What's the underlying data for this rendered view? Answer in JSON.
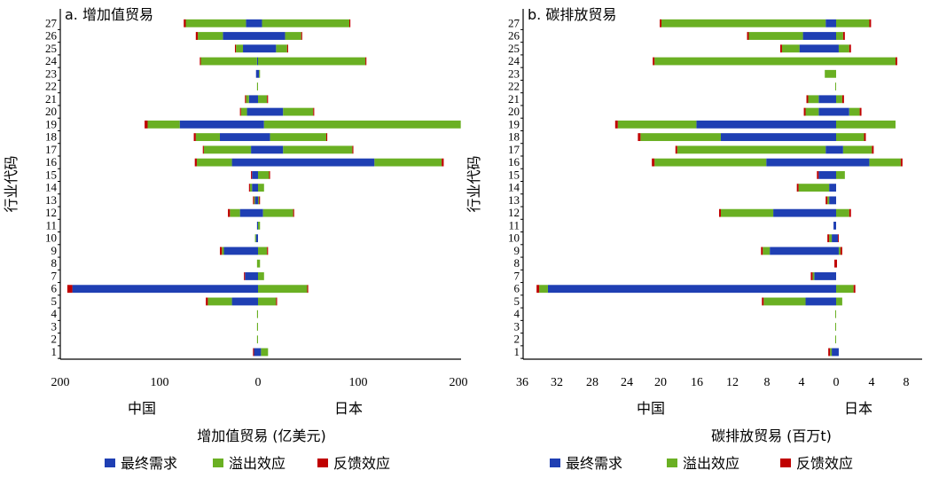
{
  "chart_data": [
    {
      "type": "bar",
      "orientation": "horizontal-diverging",
      "title": "a. 增加值贸易",
      "ylabel": "行业代码",
      "xlabel": "增加值贸易 (亿美元)",
      "left_label": "中国",
      "right_label": "日本",
      "xlim": [
        -200,
        200
      ],
      "xticks": [
        "200",
        "100",
        "0",
        "100",
        "200"
      ],
      "categories": [
        "1",
        "2",
        "3",
        "4",
        "5",
        "6",
        "7",
        "8",
        "9",
        "10",
        "11",
        "12",
        "13",
        "14",
        "15",
        "16",
        "17",
        "18",
        "19",
        "20",
        "21",
        "22",
        "23",
        "24",
        "25",
        "26",
        "27"
      ],
      "series": [
        {
          "name": "最终需求",
          "color": "#1f3fb3",
          "china": [
            -4,
            0,
            0,
            0,
            -26,
            -185,
            -13,
            0,
            -34,
            -2,
            -1,
            -18,
            -3,
            -6,
            -6,
            -26,
            -7,
            -38,
            -78,
            -11,
            -9,
            0,
            -2,
            -1,
            -15,
            -35,
            -12
          ],
          "japan": [
            3,
            0,
            0,
            0,
            0,
            0,
            0,
            0,
            0,
            0,
            0,
            5,
            0,
            0,
            0,
            116,
            25,
            12,
            6,
            25,
            0,
            0,
            1,
            0,
            18,
            27,
            4
          ]
        },
        {
          "name": "溢出效应",
          "color": "#6ab023",
          "china": [
            0,
            -1,
            -1,
            -1,
            -24,
            0,
            0,
            -1,
            -2,
            -1,
            0,
            -10,
            -1,
            -2,
            0,
            -35,
            -47,
            -24,
            -32,
            -6,
            -3,
            -1,
            0,
            -56,
            -7,
            -25,
            -60
          ],
          "japan": [
            7,
            0,
            0,
            0,
            18,
            49,
            6,
            2,
            9,
            0,
            2,
            30,
            1,
            6,
            11,
            67,
            69,
            56,
            196,
            30,
            9,
            0,
            1,
            107,
            11,
            16,
            87
          ]
        },
        {
          "name": "反馈效应",
          "color": "#c00000",
          "china": [
            -1,
            0,
            0,
            0,
            -2,
            -5,
            -1,
            0,
            -2,
            0,
            0,
            -2,
            -1,
            -1,
            -1,
            -2,
            -1,
            -2,
            -3,
            -1,
            -1,
            0,
            0,
            -1,
            -1,
            -2,
            -2
          ],
          "japan": [
            0,
            0,
            0,
            0,
            1,
            1,
            0,
            0,
            1,
            0,
            0,
            1,
            1,
            0,
            1,
            2,
            1,
            1,
            0,
            1,
            1,
            0,
            0,
            1,
            1,
            1,
            1
          ]
        }
      ]
    },
    {
      "type": "bar",
      "orientation": "horizontal-diverging",
      "title": "b. 碳排放贸易",
      "ylabel": "行业代码",
      "xlabel": "碳排放贸易 (百万t)",
      "left_label": "中国",
      "right_label": "日本",
      "xlim": [
        -36,
        10
      ],
      "xticks": [
        "36",
        "32",
        "28",
        "24",
        "20",
        "16",
        "12",
        "8",
        "4",
        "0",
        "4",
        "8"
      ],
      "categories": [
        "1",
        "2",
        "3",
        "4",
        "5",
        "6",
        "7",
        "8",
        "9",
        "10",
        "11",
        "12",
        "13",
        "14",
        "15",
        "16",
        "17",
        "18",
        "19",
        "20",
        "21",
        "22",
        "23",
        "24",
        "25",
        "26",
        "27"
      ],
      "series": [
        {
          "name": "最终需求",
          "color": "#1f3fb3",
          "china": [
            -0.5,
            0,
            0,
            0,
            -3.5,
            -33,
            -2.5,
            0,
            -7.6,
            -0.5,
            -0.3,
            -7.2,
            -0.8,
            -0.8,
            -2,
            -8,
            -1.2,
            -13.2,
            -16,
            -2,
            -2,
            0,
            0,
            0,
            -4.2,
            -3.8,
            -1.2
          ],
          "japan": [
            0.3,
            0,
            0,
            0,
            0,
            0,
            0,
            0,
            0.3,
            0.2,
            0,
            0,
            0,
            0,
            0,
            3.8,
            0.8,
            0,
            0,
            1.5,
            0,
            0,
            0,
            0,
            0.3,
            0,
            0
          ]
        },
        {
          "name": "溢出效应",
          "color": "#6ab023",
          "china": [
            -0.2,
            -0.1,
            -0.1,
            -0.1,
            -4.8,
            -1,
            -0.2,
            0,
            -0.8,
            -0.3,
            0,
            -6,
            -0.2,
            -3.5,
            0,
            -12.8,
            -17,
            -9.2,
            -9,
            -1.5,
            -1.2,
            -0.1,
            -1.3,
            -20.8,
            -2,
            -6.2,
            -18.8
          ],
          "japan": [
            0,
            0,
            0,
            0,
            0.7,
            2,
            0,
            0,
            0.2,
            0,
            0,
            1.5,
            0,
            0,
            1,
            3.6,
            3.3,
            3.2,
            6.8,
            1.2,
            0.7,
            0,
            0,
            6.8,
            1.2,
            0.8,
            3.8
          ]
        },
        {
          "name": "反馈效应",
          "color": "#c00000",
          "china": [
            -0.2,
            0,
            0,
            0,
            -0.2,
            -0.3,
            -0.2,
            -0.2,
            -0.2,
            -0.2,
            0,
            -0.2,
            -0.2,
            -0.2,
            -0.2,
            -0.3,
            -0.2,
            -0.3,
            -0.3,
            -0.2,
            -0.2,
            0,
            0,
            -0.2,
            -0.2,
            -0.2,
            -0.2
          ],
          "japan": [
            0,
            0,
            0,
            0,
            0,
            0.2,
            0,
            0.1,
            0.2,
            0.1,
            0,
            0.2,
            0,
            0,
            0,
            0.2,
            0.2,
            0.2,
            0,
            0.2,
            0.2,
            0,
            0,
            0.2,
            0.2,
            0.2,
            0.2
          ]
        }
      ]
    }
  ],
  "legend": [
    "最终需求",
    "溢出效应",
    "反馈效应"
  ]
}
